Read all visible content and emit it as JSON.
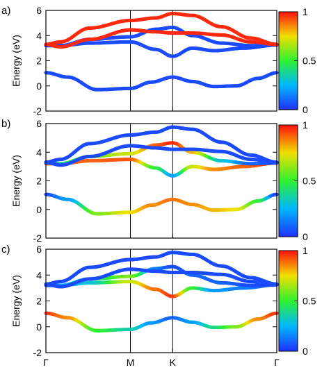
{
  "chart_data": [
    {
      "panel_label": "a)",
      "type": "line",
      "ylabel": "Energy (eV)",
      "ylim": [
        -2,
        6
      ],
      "yticks": [
        "-2",
        "0",
        "2",
        "4",
        "6"
      ],
      "x_ticks": [
        "Γ",
        "M",
        "K",
        "Γ"
      ],
      "x_tick_positions": [
        0,
        0.5774,
        0.866,
        1.5774
      ],
      "colorbar": {
        "range": [
          0,
          1
        ],
        "ticks": [
          "0",
          "0.5",
          "1"
        ]
      },
      "bands": [
        {
          "x": [
            0,
            0.15,
            0.35,
            0.5774,
            0.72,
            0.866,
            1.0,
            1.15,
            1.3,
            1.45,
            1.5774
          ],
          "y": [
            1.05,
            0.7,
            -0.3,
            -0.2,
            0.3,
            0.7,
            0.35,
            -0.05,
            0.0,
            0.6,
            1.05
          ],
          "c": [
            0.05,
            0.05,
            0.05,
            0.05,
            0.05,
            0.05,
            0.05,
            0.05,
            0.05,
            0.05,
            0.05
          ]
        },
        {
          "x": [
            0,
            0.1,
            0.3,
            0.5774,
            0.75,
            0.866,
            1.0,
            1.15,
            1.35,
            1.5774
          ],
          "y": [
            3.2,
            3.2,
            3.4,
            3.5,
            2.9,
            2.35,
            3.0,
            2.8,
            3.0,
            3.25
          ],
          "c": [
            0.05,
            0.05,
            0.05,
            0.05,
            0.05,
            0.05,
            0.05,
            0.05,
            0.05,
            0.05
          ]
        },
        {
          "x": [
            0,
            0.1,
            0.3,
            0.5774,
            0.75,
            0.866,
            1.0,
            1.2,
            1.4,
            1.5774
          ],
          "y": [
            3.25,
            3.2,
            3.7,
            3.9,
            4.5,
            4.65,
            4.0,
            3.4,
            3.2,
            3.25
          ],
          "c": [
            0.05,
            0.05,
            0.05,
            0.05,
            0.05,
            0.05,
            0.05,
            0.05,
            0.05,
            0.05
          ]
        },
        {
          "x": [
            0,
            0.1,
            0.3,
            0.5774,
            0.75,
            0.866,
            1.0,
            1.2,
            1.4,
            1.5774
          ],
          "y": [
            3.3,
            3.1,
            3.7,
            4.45,
            4.3,
            4.2,
            4.2,
            4.05,
            3.5,
            3.3
          ],
          "c": [
            0.97,
            0.97,
            0.97,
            0.97,
            0.97,
            0.97,
            0.97,
            0.97,
            0.97,
            0.97
          ]
        },
        {
          "x": [
            0,
            0.1,
            0.3,
            0.5774,
            0.75,
            0.866,
            1.0,
            1.2,
            1.4,
            1.5774
          ],
          "y": [
            3.3,
            3.5,
            4.6,
            5.2,
            5.4,
            5.75,
            5.6,
            4.7,
            3.8,
            3.3
          ],
          "c": [
            0.97,
            0.97,
            0.97,
            0.97,
            0.97,
            0.97,
            0.97,
            0.97,
            0.97,
            0.97
          ]
        }
      ]
    },
    {
      "panel_label": "b)",
      "type": "line",
      "ylabel": "Energy (eV)",
      "ylim": [
        -2,
        6
      ],
      "yticks": [
        "-2",
        "0",
        "2",
        "4",
        "6"
      ],
      "x_ticks": [
        "Γ",
        "M",
        "K",
        "Γ"
      ],
      "x_tick_positions": [
        0,
        0.5774,
        0.866,
        1.5774
      ],
      "colorbar": {
        "range": [
          0,
          1
        ],
        "ticks": [
          "0",
          "0.5",
          "1"
        ]
      },
      "bands": [
        {
          "x": [
            0,
            0.15,
            0.35,
            0.5774,
            0.72,
            0.866,
            1.0,
            1.15,
            1.3,
            1.45,
            1.5774
          ],
          "y": [
            1.05,
            0.7,
            -0.3,
            -0.2,
            0.3,
            0.7,
            0.35,
            -0.05,
            0.0,
            0.6,
            1.05
          ],
          "c": [
            0.05,
            0.2,
            0.6,
            0.75,
            0.85,
            0.88,
            0.85,
            0.8,
            0.75,
            0.5,
            0.05
          ]
        },
        {
          "x": [
            0,
            0.1,
            0.3,
            0.5774,
            0.75,
            0.866,
            1.0,
            1.15,
            1.35,
            1.5774
          ],
          "y": [
            3.2,
            3.2,
            3.4,
            3.5,
            2.9,
            2.35,
            3.0,
            2.8,
            3.0,
            3.25
          ],
          "c": [
            0.97,
            0.92,
            0.9,
            0.92,
            0.5,
            0.2,
            0.7,
            0.85,
            0.9,
            0.97
          ]
        },
        {
          "x": [
            0,
            0.1,
            0.3,
            0.5774,
            0.75,
            0.866,
            1.0,
            1.2,
            1.4,
            1.5774
          ],
          "y": [
            3.25,
            3.2,
            3.7,
            3.9,
            4.5,
            4.65,
            4.0,
            3.4,
            3.2,
            3.25
          ],
          "c": [
            0.2,
            0.4,
            0.6,
            0.7,
            0.9,
            0.97,
            0.8,
            0.3,
            0.1,
            0.05
          ]
        },
        {
          "x": [
            0,
            0.1,
            0.3,
            0.5774,
            0.75,
            0.866,
            1.0,
            1.2,
            1.4,
            1.5774
          ],
          "y": [
            3.3,
            3.1,
            3.7,
            4.45,
            4.3,
            4.2,
            4.2,
            4.05,
            3.5,
            3.3
          ],
          "c": [
            0.05,
            0.05,
            0.05,
            0.05,
            0.05,
            0.05,
            0.05,
            0.05,
            0.05,
            0.05
          ]
        },
        {
          "x": [
            0,
            0.1,
            0.3,
            0.5774,
            0.75,
            0.866,
            1.0,
            1.2,
            1.4,
            1.5774
          ],
          "y": [
            3.3,
            3.5,
            4.6,
            5.2,
            5.4,
            5.75,
            5.6,
            4.7,
            3.8,
            3.3
          ],
          "c": [
            0.05,
            0.05,
            0.05,
            0.05,
            0.05,
            0.05,
            0.05,
            0.05,
            0.05,
            0.05
          ]
        }
      ]
    },
    {
      "panel_label": "c)",
      "type": "line",
      "ylabel": "Energy (eV)",
      "ylim": [
        -2,
        6
      ],
      "yticks": [
        "-2",
        "0",
        "2",
        "4",
        "6"
      ],
      "x_ticks": [
        "Γ",
        "M",
        "K",
        "Γ"
      ],
      "x_tick_positions": [
        0,
        0.5774,
        0.866,
        1.5774
      ],
      "colorbar": {
        "range": [
          0,
          1
        ],
        "ticks": [
          "0",
          "0.5",
          "1"
        ]
      },
      "bands": [
        {
          "x": [
            0,
            0.15,
            0.35,
            0.5774,
            0.72,
            0.866,
            1.0,
            1.15,
            1.3,
            1.45,
            1.5774
          ],
          "y": [
            1.05,
            0.7,
            -0.3,
            -0.2,
            0.3,
            0.7,
            0.35,
            -0.05,
            0.0,
            0.6,
            1.05
          ],
          "c": [
            0.95,
            0.85,
            0.5,
            0.35,
            0.2,
            0.1,
            0.2,
            0.4,
            0.6,
            0.85,
            0.95
          ]
        },
        {
          "x": [
            0,
            0.1,
            0.3,
            0.5774,
            0.75,
            0.866,
            1.0,
            1.15,
            1.35,
            1.5774
          ],
          "y": [
            3.2,
            3.2,
            3.4,
            3.5,
            2.9,
            2.35,
            3.0,
            2.8,
            3.0,
            3.25
          ],
          "c": [
            0.05,
            0.15,
            0.3,
            0.7,
            0.88,
            0.95,
            0.5,
            0.2,
            0.15,
            0.05
          ]
        },
        {
          "x": [
            0,
            0.1,
            0.3,
            0.5774,
            0.75,
            0.866,
            1.0,
            1.2,
            1.4,
            1.5774
          ],
          "y": [
            3.25,
            3.2,
            3.7,
            3.9,
            4.5,
            4.65,
            4.0,
            3.4,
            3.2,
            3.25
          ],
          "c": [
            0.05,
            0.2,
            0.4,
            0.6,
            0.15,
            0.05,
            0.1,
            0.1,
            0.05,
            0.05
          ]
        },
        {
          "x": [
            0,
            0.1,
            0.3,
            0.5774,
            0.75,
            0.866,
            1.0,
            1.2,
            1.4,
            1.5774
          ],
          "y": [
            3.3,
            3.1,
            3.7,
            4.45,
            4.3,
            4.2,
            4.2,
            4.05,
            3.5,
            3.3
          ],
          "c": [
            0.05,
            0.05,
            0.05,
            0.05,
            0.05,
            0.05,
            0.05,
            0.05,
            0.05,
            0.05
          ]
        },
        {
          "x": [
            0,
            0.1,
            0.3,
            0.5774,
            0.75,
            0.866,
            1.0,
            1.2,
            1.4,
            1.5774
          ],
          "y": [
            3.3,
            3.5,
            4.6,
            5.2,
            5.4,
            5.75,
            5.6,
            4.7,
            3.8,
            3.3
          ],
          "c": [
            0.05,
            0.05,
            0.05,
            0.05,
            0.05,
            0.05,
            0.05,
            0.05,
            0.05,
            0.05
          ]
        }
      ]
    }
  ]
}
